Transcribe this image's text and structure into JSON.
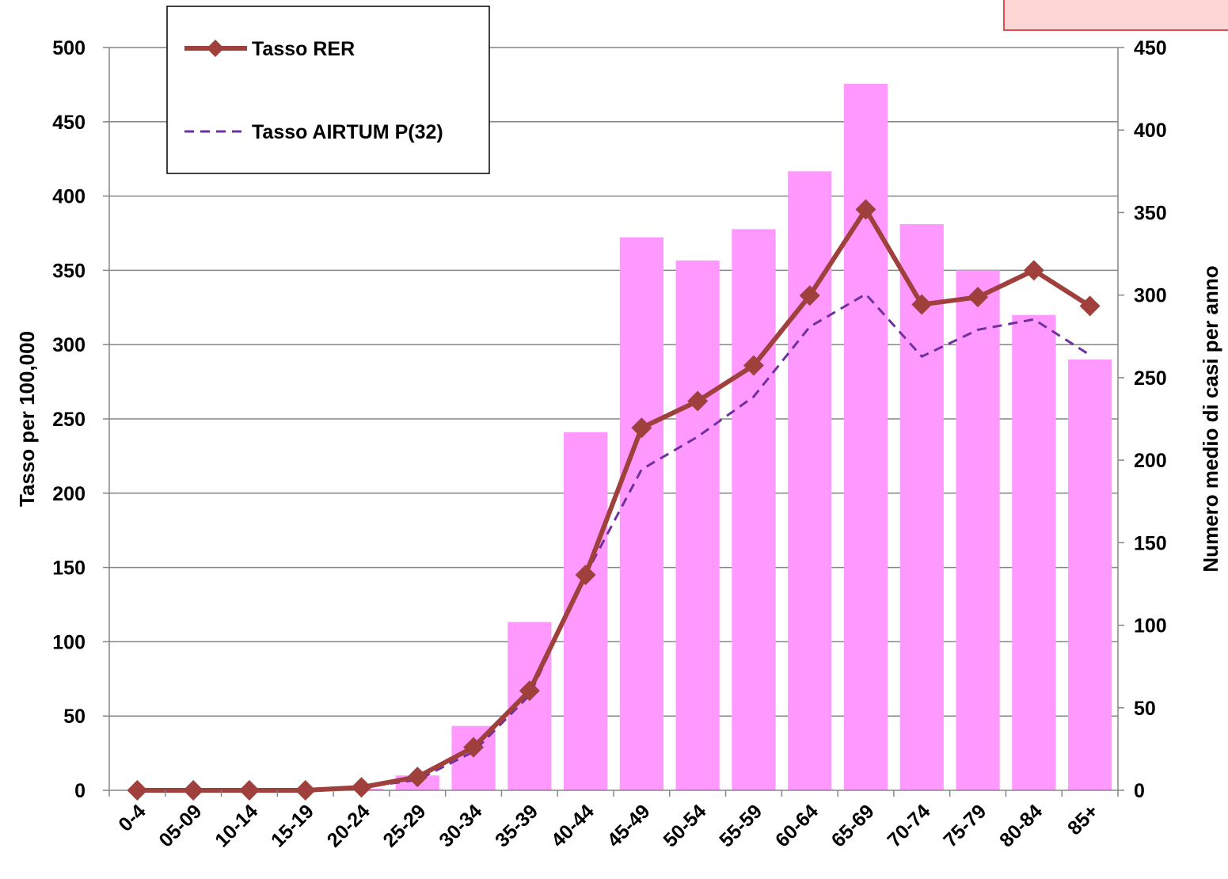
{
  "chart_data": {
    "type": "bar",
    "categories": [
      "0-4",
      "05-09",
      "10-14",
      "15-19",
      "20-24",
      "25-29",
      "30-34",
      "35-39",
      "40-44",
      "45-49",
      "50-54",
      "55-59",
      "60-64",
      "65-69",
      "70-74",
      "75-79",
      "80-84",
      "85+"
    ],
    "bars": {
      "axis": "right",
      "values": [
        0,
        0,
        0,
        0,
        1,
        9,
        39,
        102,
        217,
        335,
        321,
        340,
        375,
        428,
        343,
        315,
        288,
        261
      ],
      "color": "#ff99ff"
    },
    "series": [
      {
        "name": "Tasso RER",
        "type": "line",
        "axis": "left",
        "marker": "diamond",
        "color": "#a0403c",
        "values": [
          0,
          0,
          0,
          0,
          2,
          9,
          29,
          67,
          145,
          244,
          262,
          286,
          333,
          391,
          327,
          332,
          350,
          326
        ]
      },
      {
        "name": "Tasso AIRTUM P(32)",
        "type": "line",
        "axis": "left",
        "dash": "dashed",
        "color": "#7030a0",
        "values": [
          0,
          0,
          0,
          0,
          2,
          7,
          26,
          64,
          145,
          216,
          238,
          265,
          312,
          334,
          292,
          310,
          317,
          293
        ]
      }
    ],
    "ylabel_left": "Tasso per 100,000",
    "ylabel_right": "Numero medio di casi per anno",
    "ylim_left": [
      0,
      500
    ],
    "ylim_right": [
      0,
      450
    ],
    "yticks_left": [
      "0",
      "50",
      "100",
      "150",
      "200",
      "250",
      "300",
      "350",
      "400",
      "450",
      "500"
    ],
    "yticks_right": [
      "0",
      "50",
      "100",
      "150",
      "200",
      "250",
      "300",
      "350",
      "400",
      "450"
    ],
    "grid": true,
    "legend_position": "top-left"
  },
  "colors": {
    "bar": "#ff99ff",
    "rer_line": "#a0403c",
    "airtum_line": "#7030a0",
    "grid": "#868686",
    "corner_box_fill": "#ffd6d6",
    "corner_box_border": "#e05050"
  }
}
